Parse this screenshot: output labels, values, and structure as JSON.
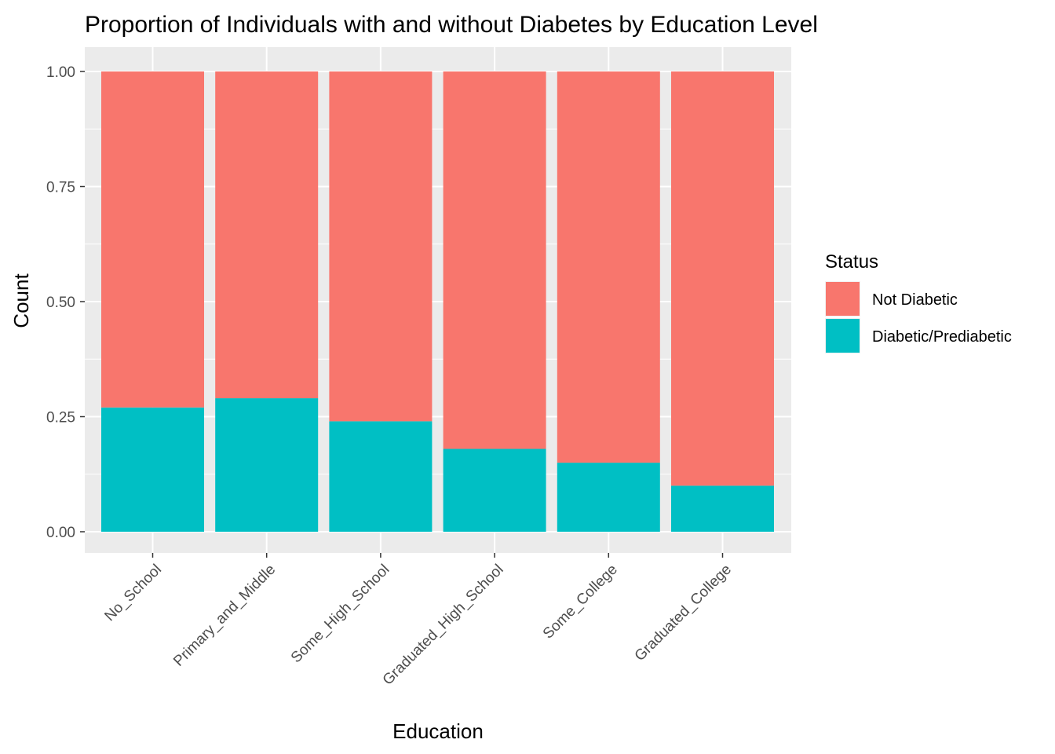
{
  "chart_data": {
    "type": "bar",
    "stacked": true,
    "title": "Proportion of Individuals with and without Diabetes by Education Level",
    "xlabel": "Education",
    "ylabel": "Count",
    "ylim": [
      0,
      1
    ],
    "yticks": [
      "0.00",
      "0.25",
      "0.50",
      "0.75",
      "1.00"
    ],
    "grid": true,
    "legend_position": "right",
    "legend_title": "Status",
    "categories": [
      "No_School",
      "Primary_and_Middle",
      "Some_High_School",
      "Graduated_High_School",
      "Some_College",
      "Graduated_College"
    ],
    "series": [
      {
        "name": "Diabetic/Prediabetic",
        "color": "#00BFC4",
        "values": [
          0.27,
          0.29,
          0.24,
          0.18,
          0.15,
          0.1
        ]
      },
      {
        "name": "Not Diabetic",
        "color": "#F8766D",
        "values": [
          0.73,
          0.71,
          0.76,
          0.82,
          0.85,
          0.9
        ]
      }
    ],
    "legend_order": [
      "Not Diabetic",
      "Diabetic/Prediabetic"
    ],
    "panel_background": "#EBEBEB",
    "grid_color": "#FFFFFF"
  }
}
